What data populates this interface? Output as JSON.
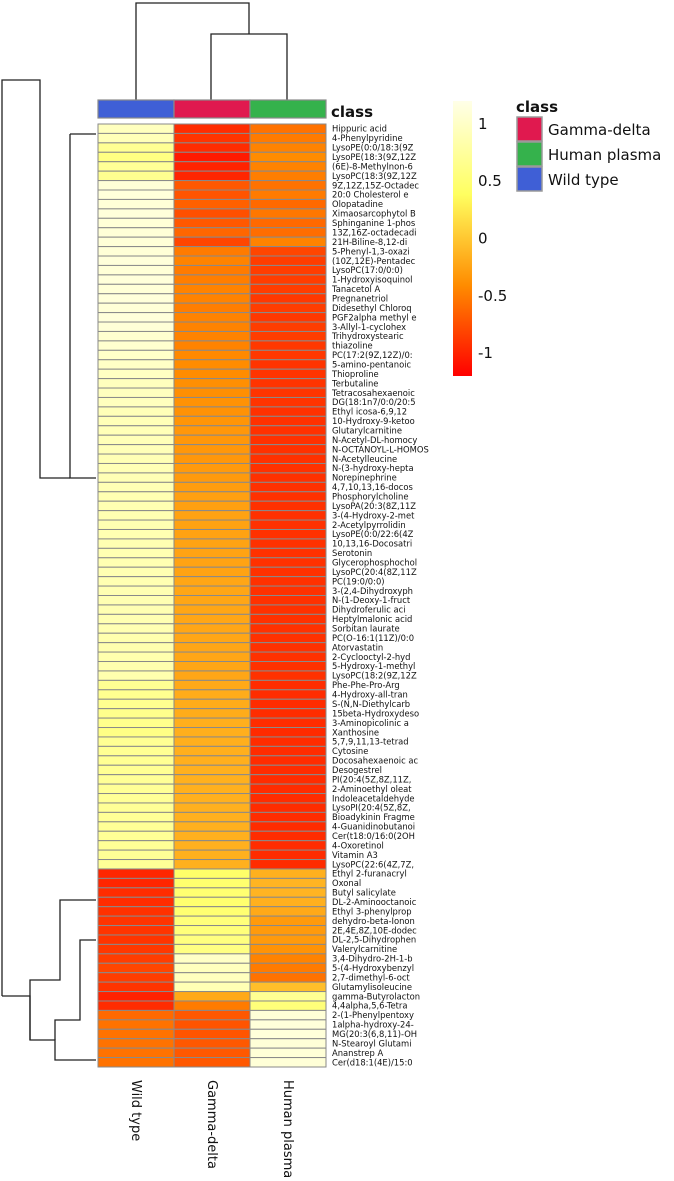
{
  "chart_data": {
    "type": "heatmap",
    "title": "",
    "columns": [
      "Wild type",
      "Gamma-delta",
      "Human plasma"
    ],
    "column_annotation": {
      "title": "class",
      "values": [
        "Wild type",
        "Gamma-delta",
        "Human plasma"
      ]
    },
    "class_legend": {
      "title": "class",
      "items": [
        {
          "label": "Gamma-delta",
          "color": "#e0194f"
        },
        {
          "label": "Human plasma",
          "color": "#35b24c"
        },
        {
          "label": "Wild type",
          "color": "#3f5fd6"
        }
      ]
    },
    "color_scale": {
      "min": -1.2,
      "max": 1.2,
      "ticks": [
        1,
        0.5,
        0,
        -0.5,
        -1
      ],
      "tick_labels": [
        "1",
        "0.5",
        "0",
        "-0.5",
        "-1"
      ],
      "colors": [
        "#ff0000",
        "#ff8c00",
        "#ffff60",
        "#ffffe8"
      ]
    },
    "row_labels": [
      "Hippuric acid",
      "4-Phenylpyridine",
      "LysoPE(0:0/18:3(9Z",
      "LysoPE(18:3(9Z,12Z",
      "(6E)-8-Methylnon-6",
      "LysoPC(18:3(9Z,12Z",
      "9Z,12Z,15Z-Octadec",
      "20:0 Cholesterol e",
      "Olopatadine",
      "Ximaosarcophytol B",
      "Sphinganine 1-phos",
      "13Z,16Z-octadecadi",
      "21H-Biline-8,12-di",
      "5-Phenyl-1,3-oxazi",
      "(10Z,12E)-Pentadec",
      "LysoPC(17:0/0:0)",
      "1-Hydroxyisoquinol",
      "Tanacetol A",
      "Pregnanetriol",
      "Didesethyl Chloroq",
      "PGF2alpha methyl e",
      "3-Allyl-1-cyclohex",
      "Trihydroxystearic",
      "thiazoline",
      "PC(17:2(9Z,12Z)/0:",
      "5-amino-pentanoic",
      "Thioproline",
      "Terbutaline",
      "Tetracosahexaenoic",
      "DG(18:1n7/0:0/20:5",
      "Ethyl icosa-6,9,12",
      "10-Hydroxy-9-ketoo",
      "Glutarylcarnitine",
      "N-Acetyl-DL-homocy",
      "N-OCTANOYL-L-HOMOS",
      "N-Acetylleucine",
      "N-(3-hydroxy-hepta",
      "Norepinephrine",
      "4,7,10,13,16-docos",
      "Phosphorylcholine",
      "LysoPA(20:3(8Z,11Z",
      "3-(4-Hydroxy-2-met",
      "2-Acetylpyrrolidin",
      "LysoPE(0:0/22:6(4Z",
      "10,13,16-Docosatri",
      "Serotonin",
      "Glycerophosphochol",
      "LysoPC(20:4(8Z,11Z",
      "PC(19:0/0:0)",
      "3-(2,4-Dihydroxyph",
      "N-(1-Deoxy-1-fruct",
      "Dihydroferulic aci",
      "Heptylmalonic acid",
      "Sorbitan laurate",
      "PC(O-16:1(11Z)/0:0",
      "Atorvastatin",
      "2-Cyclooctyl-2-hyd",
      "5-Hydroxy-1-methyl",
      "LysoPC(18:2(9Z,12Z",
      "Phe-Phe-Pro-Arg",
      "4-Hydroxy-all-tran",
      "S-(N,N-Diethylcarb",
      "15beta-Hydroxydeso",
      "3-Aminopicolinic a",
      "Xanthosine",
      "5,7,9,11,13-tetrad",
      "Cytosine",
      "Docosahexaenoic ac",
      "Desogestrel",
      "PI(20:4(5Z,8Z,11Z,",
      "2-Aminoethyl oleat",
      "Indoleacetaldehyde",
      "LysoPI(20:4(5Z,8Z,",
      "Bioadykinin Fragme",
      "4-Guanidinobutanoi",
      "Cer(t18:0/16:0(2OH",
      "4-Oxoretinol",
      "Vitamin A3",
      "LysoPC(22:6(4Z,7Z,",
      "Ethyl 2-furanacryl",
      "Oxonal",
      "Butyl salicylate",
      "DL-2-Aminooctanoic",
      "Ethyl 3-phenylprop",
      "dehydro-beta-Ionon",
      "2E,4E,8Z,10E-dodec",
      "DL-2,5-Dihydrophen",
      "Valerylcarnitine",
      "3,4-Dihydro-2H-1-b",
      "5-(4-Hydroxybenzyl",
      "2,7-dimethyl-6-oct",
      "Glutamylisoleucine",
      "gamma-Butyrolacton",
      "4,4alpha,5,6-Tetra",
      "2-(1-Phenylpentoxy",
      "1alpha-hydroxy-24-",
      "MG(20:3(6,8,11)-OH",
      "N-Stearoyl Glutami",
      "Ananstrep A",
      "Cer(d18:1(4E)/15:0"
    ],
    "values": [
      [
        0.95,
        -0.95,
        -0.55
      ],
      [
        0.92,
        -0.9,
        -0.5
      ],
      [
        0.7,
        -0.95,
        -0.45
      ],
      [
        0.6,
        -1.05,
        -0.4
      ],
      [
        0.72,
        -1.0,
        -0.45
      ],
      [
        0.68,
        -0.98,
        -0.48
      ],
      [
        1.1,
        -0.7,
        -0.55
      ],
      [
        1.12,
        -0.72,
        -0.5
      ],
      [
        1.1,
        -0.65,
        -0.6
      ],
      [
        1.12,
        -0.75,
        -0.52
      ],
      [
        1.1,
        -0.7,
        -0.6
      ],
      [
        1.1,
        -0.62,
        -0.58
      ],
      [
        1.1,
        -0.8,
        -0.45
      ],
      [
        1.1,
        -0.5,
        -0.8
      ],
      [
        1.12,
        -0.45,
        -0.85
      ],
      [
        1.1,
        -0.5,
        -0.85
      ],
      [
        1.12,
        -0.48,
        -0.85
      ],
      [
        1.1,
        -0.45,
        -0.85
      ],
      [
        1.12,
        -0.45,
        -0.88
      ],
      [
        1.1,
        -0.48,
        -0.85
      ],
      [
        1.12,
        -0.45,
        -0.88
      ],
      [
        1.1,
        -0.45,
        -0.85
      ],
      [
        1.05,
        -0.45,
        -0.85
      ],
      [
        1.05,
        -0.45,
        -0.88
      ],
      [
        1.02,
        -0.42,
        -0.88
      ],
      [
        1.0,
        -0.4,
        -0.9
      ],
      [
        0.98,
        -0.4,
        -0.9
      ],
      [
        0.95,
        -0.38,
        -0.9
      ],
      [
        0.95,
        -0.38,
        -0.9
      ],
      [
        0.95,
        -0.36,
        -0.9
      ],
      [
        0.92,
        -0.36,
        -0.92
      ],
      [
        0.92,
        -0.34,
        -0.92
      ],
      [
        0.92,
        -0.32,
        -0.92
      ],
      [
        0.92,
        -0.32,
        -0.92
      ],
      [
        0.92,
        -0.32,
        -0.92
      ],
      [
        0.9,
        -0.32,
        -0.92
      ],
      [
        0.9,
        -0.3,
        -0.92
      ],
      [
        0.9,
        -0.3,
        -0.92
      ],
      [
        0.9,
        -0.28,
        -0.92
      ],
      [
        0.88,
        -0.26,
        -0.92
      ],
      [
        0.88,
        -0.26,
        -0.92
      ],
      [
        0.88,
        -0.25,
        -0.92
      ],
      [
        0.88,
        -0.25,
        -0.92
      ],
      [
        0.88,
        -0.25,
        -0.92
      ],
      [
        0.88,
        -0.24,
        -0.92
      ],
      [
        0.88,
        -0.24,
        -0.92
      ],
      [
        0.88,
        -0.24,
        -0.92
      ],
      [
        0.88,
        -0.24,
        -0.92
      ],
      [
        0.88,
        -0.22,
        -0.92
      ],
      [
        0.88,
        -0.22,
        -0.92
      ],
      [
        0.88,
        -0.22,
        -0.92
      ],
      [
        0.88,
        -0.22,
        -0.92
      ],
      [
        0.88,
        -0.22,
        -0.92
      ],
      [
        0.88,
        -0.22,
        -0.92
      ],
      [
        0.86,
        -0.22,
        -0.92
      ],
      [
        0.86,
        -0.22,
        -0.92
      ],
      [
        0.86,
        -0.22,
        -0.92
      ],
      [
        0.86,
        -0.22,
        -0.92
      ],
      [
        0.86,
        -0.22,
        -0.92
      ],
      [
        0.7,
        -0.2,
        -0.95
      ],
      [
        0.68,
        -0.18,
        -0.95
      ],
      [
        0.68,
        -0.18,
        -0.95
      ],
      [
        0.66,
        -0.18,
        -0.95
      ],
      [
        0.66,
        -0.16,
        -0.95
      ],
      [
        0.62,
        -0.16,
        -0.96
      ],
      [
        0.7,
        -0.16,
        -0.95
      ],
      [
        0.7,
        -0.16,
        -0.95
      ],
      [
        0.7,
        -0.16,
        -0.95
      ],
      [
        0.7,
        -0.15,
        -0.95
      ],
      [
        0.72,
        -0.15,
        -0.95
      ],
      [
        0.72,
        -0.15,
        -0.95
      ],
      [
        0.72,
        -0.15,
        -0.95
      ],
      [
        0.72,
        -0.15,
        -0.95
      ],
      [
        0.72,
        -0.15,
        -0.95
      ],
      [
        0.72,
        -0.15,
        -0.95
      ],
      [
        0.72,
        -0.15,
        -0.95
      ],
      [
        0.72,
        -0.15,
        -0.95
      ],
      [
        0.72,
        -0.15,
        -0.95
      ],
      [
        0.72,
        -0.15,
        -0.95
      ],
      [
        -0.98,
        0.45,
        -0.15
      ],
      [
        -0.98,
        0.48,
        -0.12
      ],
      [
        -0.95,
        0.5,
        -0.12
      ],
      [
        -0.95,
        0.48,
        -0.15
      ],
      [
        -0.92,
        0.5,
        -0.2
      ],
      [
        -0.9,
        0.55,
        -0.3
      ],
      [
        -0.9,
        0.55,
        -0.3
      ],
      [
        -0.9,
        0.58,
        -0.3
      ],
      [
        -0.88,
        0.6,
        -0.35
      ],
      [
        -0.85,
        1.0,
        -0.45
      ],
      [
        -0.8,
        0.95,
        -0.5
      ],
      [
        -0.85,
        0.95,
        -0.55
      ],
      [
        -0.9,
        0.9,
        -0.05
      ],
      [
        -1.0,
        -0.2,
        0.7
      ],
      [
        -0.95,
        -0.5,
        0.55
      ],
      [
        -0.6,
        -0.7,
        1.1
      ],
      [
        -0.55,
        -0.72,
        1.12
      ],
      [
        -0.55,
        -0.72,
        1.12
      ],
      [
        -0.55,
        -0.7,
        1.1
      ],
      [
        -0.55,
        -0.7,
        1.1
      ],
      [
        -0.55,
        -0.7,
        1.1
      ]
    ]
  }
}
